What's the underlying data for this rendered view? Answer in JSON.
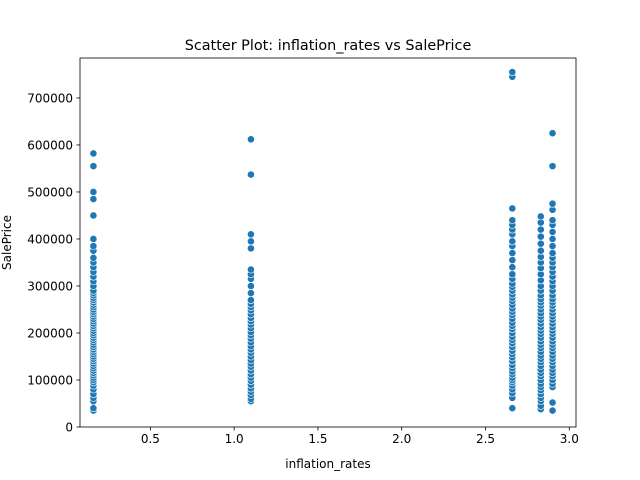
{
  "chart_data": {
    "type": "scatter",
    "title": "Scatter Plot: inflation_rates vs SalePrice",
    "xlabel": "inflation_rates",
    "ylabel": "SalePrice",
    "xlim": [
      0.08,
      3.04
    ],
    "ylim": [
      0,
      785000
    ],
    "x_ticks": [
      0.5,
      1.0,
      1.5,
      2.0,
      2.5,
      3.0
    ],
    "x_tick_labels": [
      "0.5",
      "1.0",
      "1.5",
      "2.0",
      "2.5",
      "3.0"
    ],
    "y_ticks": [
      0,
      100000,
      200000,
      300000,
      400000,
      500000,
      600000,
      700000
    ],
    "y_tick_labels": [
      "0",
      "100000",
      "200000",
      "300000",
      "400000",
      "500000",
      "600000",
      "700000"
    ],
    "grid": false,
    "marker_color": "#1f77b4",
    "points": [
      {
        "x": 0.16,
        "y": [
          35000,
          40000,
          55000,
          62000,
          70000,
          80000,
          88000,
          95000,
          100000,
          105000,
          110000,
          115000,
          120000,
          125000,
          130000,
          135000,
          140000,
          145000,
          150000,
          155000,
          160000,
          165000,
          170000,
          175000,
          180000,
          185000,
          190000,
          195000,
          200000,
          205000,
          210000,
          215000,
          220000,
          225000,
          230000,
          235000,
          240000,
          245000,
          250000,
          255000,
          260000,
          265000,
          270000,
          275000,
          280000,
          285000,
          290000,
          300000,
          310000,
          320000,
          330000,
          340000,
          350000,
          360000,
          375000,
          385000,
          400000,
          450000,
          485000,
          500000,
          555000,
          582000
        ]
      },
      {
        "x": 1.1,
        "y": [
          55000,
          60000,
          68000,
          75000,
          82000,
          90000,
          98000,
          105000,
          112000,
          120000,
          128000,
          135000,
          142000,
          150000,
          158000,
          165000,
          172000,
          180000,
          188000,
          195000,
          202000,
          210000,
          218000,
          225000,
          232000,
          240000,
          248000,
          255000,
          262000,
          270000,
          285000,
          300000,
          315000,
          325000,
          335000,
          380000,
          395000,
          410000,
          537000,
          612000
        ]
      },
      {
        "x": 2.66,
        "y": [
          40000,
          62000,
          72000,
          80000,
          88000,
          95000,
          100000,
          105000,
          112000,
          118000,
          125000,
          132000,
          140000,
          148000,
          155000,
          162000,
          170000,
          178000,
          185000,
          192000,
          200000,
          208000,
          215000,
          222000,
          230000,
          238000,
          245000,
          252000,
          260000,
          268000,
          275000,
          282000,
          290000,
          298000,
          305000,
          315000,
          325000,
          340000,
          355000,
          370000,
          385000,
          395000,
          410000,
          420000,
          430000,
          440000,
          465000,
          745000,
          755000
        ]
      },
      {
        "x": 2.83,
        "y": [
          38000,
          45000,
          55000,
          62000,
          70000,
          78000,
          85000,
          92000,
          100000,
          108000,
          115000,
          122000,
          130000,
          138000,
          145000,
          152000,
          160000,
          168000,
          175000,
          182000,
          190000,
          198000,
          205000,
          212000,
          220000,
          228000,
          235000,
          242000,
          250000,
          258000,
          265000,
          272000,
          280000,
          290000,
          300000,
          312000,
          325000,
          338000,
          350000,
          362000,
          375000,
          390000,
          405000,
          420000,
          435000,
          448000
        ]
      },
      {
        "x": 2.9,
        "y": [
          35000,
          52000,
          85000,
          92000,
          100000,
          108000,
          115000,
          122000,
          130000,
          138000,
          145000,
          152000,
          160000,
          168000,
          175000,
          182000,
          190000,
          198000,
          205000,
          212000,
          220000,
          228000,
          235000,
          242000,
          250000,
          258000,
          265000,
          272000,
          280000,
          290000,
          300000,
          310000,
          320000,
          330000,
          340000,
          350000,
          360000,
          370000,
          385000,
          400000,
          415000,
          430000,
          440000,
          462000,
          475000,
          555000,
          625000
        ]
      }
    ]
  }
}
